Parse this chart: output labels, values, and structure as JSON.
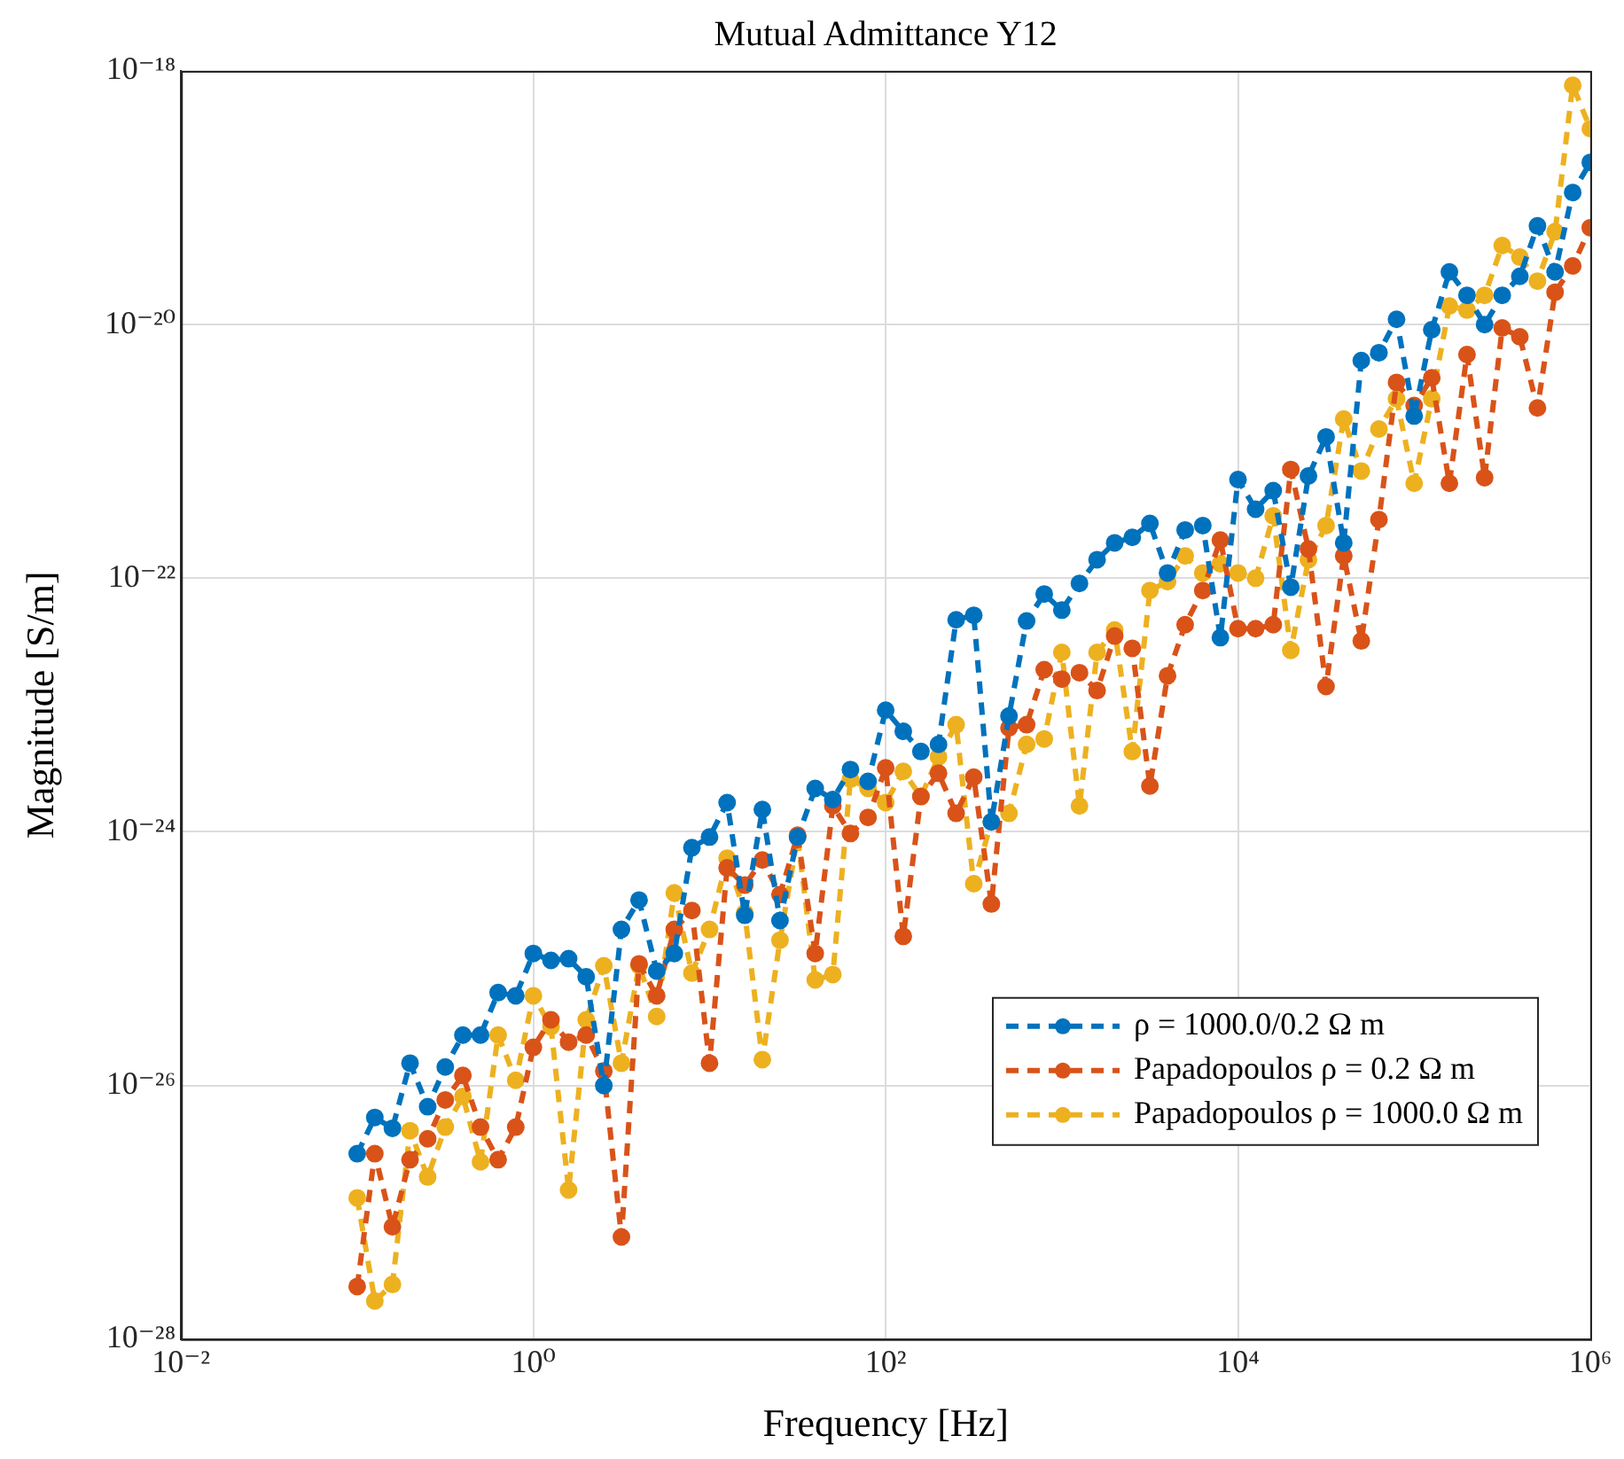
{
  "chart_data": {
    "type": "line",
    "title": "Mutual Admittance Y12",
    "xlabel": "Frequency [Hz]",
    "ylabel": "Magnitude [S/m]",
    "log": "xy",
    "grid": true,
    "legend": "bottom right",
    "marker": "circle",
    "line_style": "dashed",
    "xlim": [
      0.01,
      1000000
    ],
    "ylim": [
      1e-28,
      1e-18
    ],
    "xticks": [
      {
        "value": 0.01,
        "label": "10⁻²"
      },
      {
        "value": 1,
        "label": "10⁰"
      },
      {
        "value": 100,
        "label": "10²"
      },
      {
        "value": 10000,
        "label": "10⁴"
      },
      {
        "value": 1000000,
        "label": "10⁶"
      }
    ],
    "yticks": [
      {
        "value": 1e-28,
        "label": "10⁻²⁸"
      },
      {
        "value": 1e-26,
        "label": "10⁻²⁶"
      },
      {
        "value": 1e-24,
        "label": "10⁻²⁴"
      },
      {
        "value": 1e-22,
        "label": "10⁻²²"
      },
      {
        "value": 1e-20,
        "label": "10⁻²⁰"
      },
      {
        "value": 1e-18,
        "label": "10⁻¹⁸"
      }
    ],
    "x": [
      0.1,
      0.1259,
      0.1585,
      0.1995,
      0.2512,
      0.3162,
      0.3981,
      0.5012,
      0.631,
      0.7943,
      1,
      1.259,
      1.585,
      1.995,
      2.512,
      3.162,
      3.981,
      5.012,
      6.31,
      7.943,
      10,
      12.59,
      15.85,
      19.95,
      25.12,
      31.62,
      39.81,
      50.12,
      63.1,
      79.43,
      100,
      125.9,
      158.5,
      199.5,
      251.2,
      316.2,
      398.1,
      501.2,
      631,
      794.3,
      1000,
      1259,
      1585,
      1995,
      2512,
      3162,
      3981,
      5012,
      6310,
      7943,
      10000,
      12590,
      15850,
      19950,
      25120,
      31620,
      39810,
      50120,
      63100,
      79430,
      100000,
      125900,
      158500,
      199500,
      251200,
      316200,
      398100,
      501200,
      631000,
      794300,
      1000000
    ],
    "series": [
      {
        "name": "ρ = 1000.0/0.2 Ω m",
        "color": "#0072bd",
        "values": [
          2.9e-27,
          5.6e-27,
          4.6e-27,
          1.5e-26,
          6.8e-27,
          1.4e-26,
          2.5e-26,
          2.5e-26,
          5.4e-26,
          5.1e-26,
          1.1e-25,
          9.7e-26,
          1e-25,
          7.2e-26,
          1e-26,
          1.7e-25,
          2.9e-25,
          8e-26,
          1.1e-25,
          7.5e-25,
          9.1e-25,
          1.7e-24,
          2.2e-25,
          1.5e-24,
          2e-25,
          9.1e-25,
          2.2e-24,
          1.8e-24,
          3.1e-24,
          2.5e-24,
          9.1e-24,
          6.2e-24,
          4.3e-24,
          4.9e-24,
          4.7e-23,
          5.1e-23,
          1.2e-24,
          8.2e-24,
          4.6e-23,
          7.5e-23,
          5.6e-23,
          9.1e-23,
          1.4e-22,
          1.9e-22,
          2.1e-22,
          2.7e-22,
          1.1e-22,
          2.4e-22,
          2.6e-22,
          3.4e-23,
          6e-22,
          3.5e-22,
          4.9e-22,
          8.5e-23,
          6.4e-22,
          1.3e-21,
          1.9e-22,
          5.2e-21,
          6e-21,
          1.1e-20,
          1.9e-21,
          9.1e-21,
          2.6e-20,
          1.7e-20,
          1e-20,
          1.7e-20,
          2.4e-20,
          6e-20,
          2.6e-20,
          1.1e-19,
          1.9e-19
        ]
      },
      {
        "name": "Papadopoulos ρ = 0.2 Ω m",
        "color": "#d95319",
        "values": [
          2.6e-28,
          2.9e-27,
          7.7e-28,
          2.6e-27,
          3.8e-27,
          7.7e-27,
          1.2e-26,
          4.7e-27,
          2.6e-27,
          4.7e-27,
          2e-26,
          3.3e-26,
          2.2e-26,
          2.5e-26,
          1.3e-26,
          6.4e-28,
          9.1e-26,
          5.1e-26,
          1.7e-25,
          2.4e-25,
          1.5e-26,
          5.2e-25,
          3.8e-25,
          6e-25,
          3.2e-25,
          9.4e-25,
          1.1e-25,
          1.6e-24,
          9.7e-25,
          1.3e-24,
          3.2e-24,
          1.5e-25,
          1.9e-24,
          2.9e-24,
          1.4e-24,
          2.7e-24,
          2.7e-25,
          6.6e-24,
          7e-24,
          1.9e-23,
          1.6e-23,
          1.8e-23,
          1.3e-23,
          3.5e-23,
          2.8e-23,
          2.3e-24,
          1.7e-23,
          4.3e-23,
          8e-23,
          2e-22,
          4e-23,
          4e-23,
          4.3e-23,
          7.2e-22,
          1.7e-22,
          1.4e-23,
          1.5e-22,
          3.2e-23,
          2.9e-22,
          3.5e-21,
          2.3e-21,
          3.8e-21,
          5.6e-22,
          5.8e-21,
          6.2e-22,
          9.4e-21,
          8e-21,
          2.2e-21,
          1.8e-20,
          2.9e-20,
          5.8e-20
        ]
      },
      {
        "name": "Papadopoulos ρ = 1000.0 Ω m",
        "color": "#edb120",
        "values": [
          1.3e-27,
          2e-28,
          2.7e-28,
          4.4e-27,
          1.9e-27,
          4.7e-27,
          8.2e-27,
          2.5e-27,
          2.5e-26,
          1.1e-26,
          5.1e-26,
          2.9e-26,
          1.5e-27,
          3.3e-26,
          8.8e-26,
          1.5e-26,
          8.8e-26,
          3.5e-26,
          3.3e-25,
          7.7e-26,
          1.7e-25,
          6.2e-25,
          2.3e-25,
          1.6e-26,
          1.4e-25,
          9.1e-25,
          6.8e-26,
          7.5e-26,
          2.6e-24,
          2.2e-24,
          1.7e-24,
          3e-24,
          1.9e-24,
          3.9e-24,
          7e-24,
          3.9e-25,
          1.2e-24,
          1.4e-24,
          4.9e-24,
          5.4e-24,
          2.6e-23,
          1.6e-24,
          2.6e-23,
          3.9e-23,
          4.3e-24,
          8e-23,
          9.4e-23,
          1.5e-22,
          1.1e-22,
          1.3e-22,
          1.1e-22,
          1e-22,
          3.1e-22,
          2.7e-23,
          1.4e-22,
          2.6e-22,
          1.8e-21,
          7e-22,
          1.5e-21,
          2.6e-21,
          5.6e-22,
          2.6e-21,
          1.4e-20,
          1.3e-20,
          1.7e-20,
          4.2e-20,
          3.4e-20,
          2.2e-20,
          5.4e-20,
          7.7e-19,
          3.5e-19
        ]
      }
    ]
  }
}
